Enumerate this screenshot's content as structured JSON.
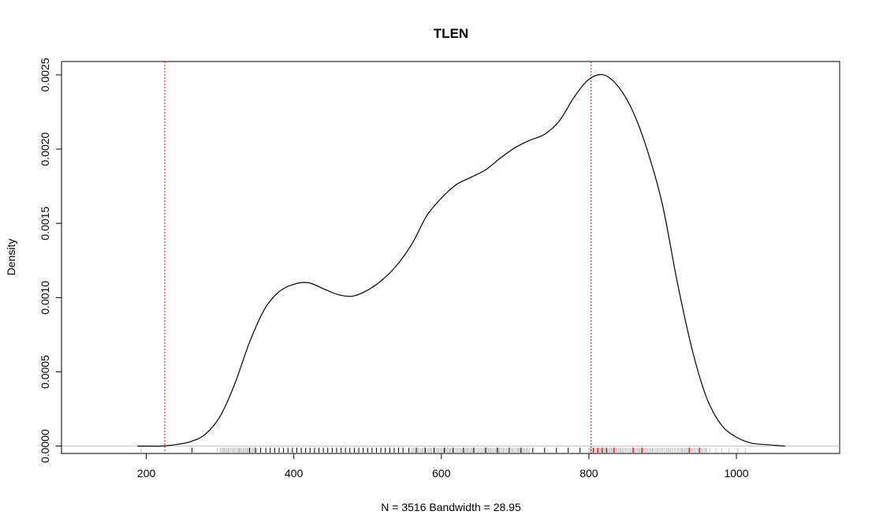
{
  "chart_data": {
    "type": "line",
    "title": "TLEN",
    "xlabel": "",
    "ylabel": "Density",
    "subtitle": "N = 3516   Bandwidth = 28.95",
    "xlim": [
      85,
      1140
    ],
    "ylim": [
      -5e-05,
      0.00259
    ],
    "x_ticks": [
      200,
      400,
      600,
      800,
      1000
    ],
    "x_tick_labels": [
      "200",
      "400",
      "600",
      "800",
      "1000"
    ],
    "y_ticks": [
      0.0,
      0.0005,
      0.001,
      0.0015,
      0.002,
      0.0025
    ],
    "y_tick_labels": [
      "0.0000",
      "0.0005",
      "0.0010",
      "0.0015",
      "0.0020",
      "0.0025"
    ],
    "grid": false,
    "colors": {
      "density": "#000000",
      "baseline": "#bebebe",
      "vline": "#cc0000",
      "rug_gray": "#bebebe",
      "rug_black": "#000000",
      "rug_red": "#dd0000"
    },
    "series": [
      {
        "x": [
          188,
          200,
          220,
          240,
          260,
          280,
          300,
          320,
          340,
          360,
          380,
          400,
          420,
          440,
          460,
          480,
          500,
          520,
          540,
          560,
          580,
          600,
          620,
          640,
          660,
          680,
          700,
          720,
          740,
          760,
          780,
          800,
          820,
          840,
          860,
          880,
          900,
          920,
          940,
          960,
          980,
          1000,
          1020,
          1040,
          1066
        ],
        "y": [
          0.0,
          0.0,
          0.0,
          1e-05,
          3e-05,
          8e-05,
          0.0002,
          0.00042,
          0.0007,
          0.00092,
          0.00104,
          0.00109,
          0.0011,
          0.00106,
          0.00102,
          0.00101,
          0.00105,
          0.00112,
          0.00122,
          0.00136,
          0.00155,
          0.00167,
          0.00176,
          0.00181,
          0.00186,
          0.00194,
          0.00201,
          0.00206,
          0.0021,
          0.00219,
          0.00235,
          0.00247,
          0.0025,
          0.00242,
          0.00225,
          0.00198,
          0.00162,
          0.0011,
          0.00065,
          0.00032,
          0.00014,
          6e-05,
          2e-05,
          1e-05,
          0.0
        ]
      }
    ],
    "vlines": [
      225,
      803
    ],
    "rug": {
      "gray_ranges": [
        [
          300,
          350
        ],
        [
          560,
          720
        ],
        [
          800,
          960
        ]
      ],
      "black_marks": [
        262,
        340,
        348,
        355,
        362,
        368,
        374,
        380,
        386,
        392,
        398,
        404,
        410,
        416,
        422,
        428,
        434,
        440,
        446,
        452,
        458,
        464,
        470,
        476,
        482,
        488,
        494,
        500,
        506,
        512,
        518,
        524,
        530,
        536,
        542,
        548,
        556,
        566,
        578,
        590,
        604,
        616,
        630,
        644,
        660,
        676,
        692,
        708,
        724,
        740,
        756,
        772,
        788
      ],
      "gray_marks": [
        193,
        296,
        312,
        326,
        964,
        972,
        980,
        990,
        1002,
        1012
      ],
      "red_marks": [
        806,
        812,
        818,
        824,
        834,
        860,
        872,
        936,
        950
      ]
    }
  }
}
